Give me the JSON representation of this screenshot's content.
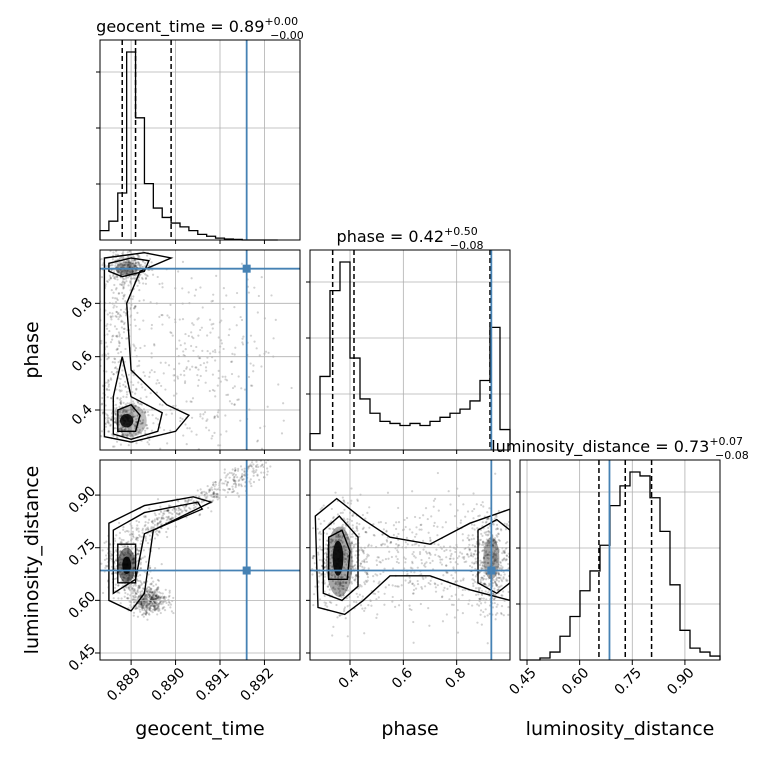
{
  "colors": {
    "truth": "#4682b4",
    "hist": "#000000",
    "grid": "#b0b0b0",
    "scatter": "#000000"
  },
  "titles": [
    {
      "param": "geocent_time",
      "eq": " = 0.89",
      "plus": "+0.00",
      "minus": "−0.00"
    },
    {
      "param": "phase",
      "eq": " = 0.42",
      "plus": "+0.50",
      "minus": "−0.08"
    },
    {
      "param": "luminosity_distance",
      "eq": " = 0.73",
      "plus": "+0.07",
      "minus": "−0.08"
    }
  ],
  "chart_data": {
    "type": "corner",
    "parameters": [
      "geocent_time",
      "phase",
      "luminosity_distance"
    ],
    "axis_labels": [
      "geocent_time",
      "phase",
      "luminosity_distance"
    ],
    "ranges": [
      [
        0.8883,
        0.8928
      ],
      [
        0.25,
        1.0
      ],
      [
        0.43,
        1.0
      ]
    ],
    "ticks": {
      "geocent_time": {
        "values": [
          0.889,
          0.89,
          0.891,
          0.892
        ],
        "labels": [
          "0.889",
          "0.890",
          "0.891",
          "0.892"
        ]
      },
      "phase": {
        "values": [
          0.4,
          0.6,
          0.8
        ],
        "labels": [
          "0.4",
          "0.6",
          "0.8"
        ]
      },
      "luminosity_distance": {
        "values": [
          0.45,
          0.6,
          0.75,
          0.9
        ],
        "labels": [
          "0.45",
          "0.60",
          "0.75",
          "0.90"
        ]
      }
    },
    "truths": [
      0.8916,
      0.93,
      0.685
    ],
    "quantiles": {
      "geocent_time": [
        0.8888,
        0.8891,
        0.8899
      ],
      "phase": [
        0.335,
        0.415,
        0.925
      ],
      "luminosity_distance": [
        0.655,
        0.73,
        0.805
      ]
    },
    "histograms": {
      "geocent_time": {
        "edges_start": 0.8883,
        "bin_width": 0.0002,
        "heights": [
          0.05,
          0.1,
          0.25,
          1.0,
          0.65,
          0.3,
          0.17,
          0.12,
          0.09,
          0.07,
          0.05,
          0.03,
          0.02,
          0.01,
          0.005,
          0.003,
          0,
          0,
          0,
          0
        ]
      },
      "phase": {
        "edges_start": 0.25,
        "bin_width": 0.0375,
        "heights": [
          0.08,
          0.36,
          0.78,
          0.92,
          0.45,
          0.25,
          0.18,
          0.14,
          0.13,
          0.12,
          0.13,
          0.12,
          0.14,
          0.16,
          0.18,
          0.2,
          0.24,
          0.34,
          0.6,
          0.1
        ]
      },
      "luminosity_distance": {
        "edges_start": 0.43,
        "bin_width": 0.0285,
        "heights": [
          0.0,
          0.0,
          0.01,
          0.04,
          0.12,
          0.22,
          0.35,
          0.45,
          0.58,
          0.78,
          0.88,
          0.95,
          0.93,
          0.82,
          0.65,
          0.38,
          0.15,
          0.06,
          0.04,
          0.02
        ]
      }
    },
    "grid": true
  }
}
